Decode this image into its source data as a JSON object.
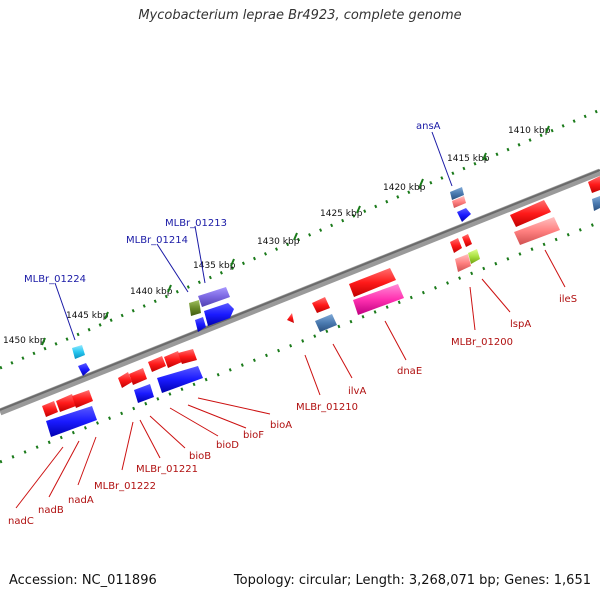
{
  "title": "Mycobacterium leprae Br4923, complete genome",
  "footer": {
    "accession": "Accession: NC_011896",
    "topology": "Topology: circular; Length: 3,268,071 bp; Genes: 1,651"
  },
  "kbp_labels": [
    "1410 kbp",
    "1415 kbp",
    "1420 kbp",
    "1425 kbp",
    "1430 kbp",
    "1435 kbp",
    "1440 kbp",
    "1445 kbp",
    "1450 kbp"
  ],
  "genes_top": [
    "ansA",
    "MLBr_01213",
    "MLBr_01214",
    "MLBr_01224"
  ],
  "genes_bottom": [
    "ileS",
    "lspA",
    "MLBr_01200",
    "dnaE",
    "ilvA",
    "MLBr_01210",
    "bioA",
    "bioF",
    "bioD",
    "bioB",
    "MLBr_01221",
    "MLBr_01222",
    "nadA",
    "nadB",
    "nadC"
  ],
  "colors": {
    "backbone": "#808080",
    "tick": "#1a7a1a",
    "cds_red": "#ff2a2a",
    "cds_pink": "#ff3fb0",
    "cds_salmon": "#ff8a8a",
    "cds_blue": "#1a1aff",
    "cds_purple": "#7a66e0",
    "cds_steel": "#4a7ab0",
    "cds_cyan": "#27c7f0",
    "cds_olive": "#6a8a2a",
    "cds_lime": "#a8e040"
  }
}
